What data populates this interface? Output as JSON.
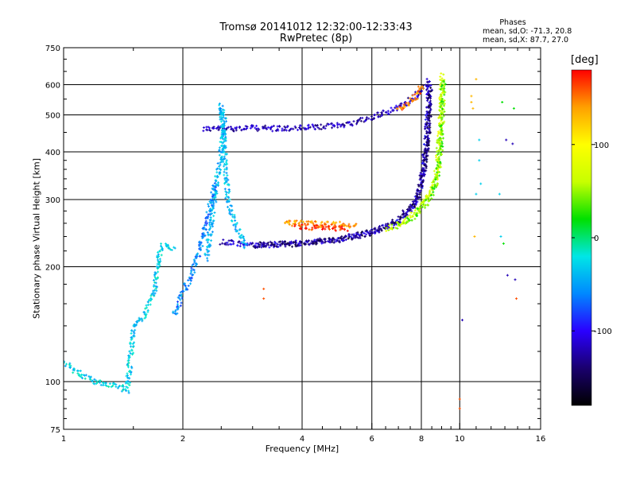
{
  "chart_data": {
    "type": "scatter",
    "title": "Tromsø 20141012 12:32:00-12:33:43",
    "subtitle": "RwPretec (8p)",
    "xlabel": "Frequency [MHz]",
    "ylabel": "Stationary phase Virtual Height [km]",
    "x_scale": "log",
    "y_scale": "log",
    "xlim": [
      1,
      16
    ],
    "ylim": [
      75,
      750
    ],
    "x_ticks": [
      1,
      2,
      4,
      6,
      8,
      10,
      16
    ],
    "y_ticks": [
      75,
      100,
      200,
      300,
      400,
      500,
      600,
      750
    ],
    "grid": true,
    "stats": {
      "heading": "Phases",
      "o_line": "mean, sd,O: -71.3, 20.8",
      "x_line": "mean, sd,X:  87.7, 27.0"
    },
    "colorbar": {
      "label": "[deg]",
      "range": [
        -180,
        180
      ],
      "ticks": [
        -100,
        0,
        100
      ],
      "colormap": "rainbow",
      "colors": [
        "#000000",
        "#1a006e",
        "#2a00ff",
        "#0088ff",
        "#00e6e6",
        "#00e000",
        "#c8ff00",
        "#ffff00",
        "#ffa000",
        "#ff0000"
      ]
    },
    "traces": [
      {
        "name": "",
        "phase": -120,
        "points": [
          [
            2.25,
            460
          ],
          [
            2.4,
            460
          ],
          [
            3.0,
            462
          ],
          [
            3.5,
            460
          ],
          [
            4.0,
            462
          ],
          [
            4.6,
            466
          ],
          [
            5.3,
            475
          ],
          [
            6.0,
            492
          ],
          [
            6.6,
            512
          ],
          [
            7.3,
            535
          ],
          [
            7.9,
            568
          ],
          [
            8.2,
            600
          ]
        ]
      },
      {
        "name": "",
        "phase": -110,
        "points": [
          [
            2.5,
            232
          ],
          [
            3.0,
            228
          ],
          [
            3.5,
            229
          ],
          [
            4.0,
            231
          ],
          [
            4.5,
            234
          ],
          [
            5.0,
            237
          ],
          [
            5.6,
            242
          ],
          [
            6.2,
            249
          ],
          [
            6.8,
            258
          ],
          [
            7.3,
            272
          ],
          [
            7.7,
            292
          ],
          [
            8.0,
            330
          ],
          [
            8.15,
            380
          ],
          [
            8.25,
            440
          ],
          [
            8.32,
            520
          ],
          [
            8.38,
            620
          ]
        ]
      },
      {
        "name": "",
        "phase": -140,
        "points": [
          [
            3.0,
            228
          ],
          [
            4.0,
            230
          ],
          [
            5.0,
            236
          ],
          [
            6.0,
            246
          ],
          [
            7.0,
            265
          ],
          [
            7.8,
            300
          ],
          [
            8.2,
            380
          ],
          [
            8.35,
            480
          ],
          [
            8.42,
            600
          ]
        ]
      },
      {
        "name": "",
        "phase": 70,
        "points": [
          [
            6.5,
            252
          ],
          [
            7.2,
            262
          ],
          [
            7.8,
            280
          ],
          [
            8.3,
            305
          ],
          [
            8.7,
            340
          ],
          [
            8.85,
            400
          ],
          [
            8.95,
            480
          ],
          [
            9.0,
            560
          ],
          [
            9.05,
            640
          ]
        ]
      },
      {
        "name": "",
        "phase": 40,
        "points": [
          [
            7.0,
            255
          ],
          [
            7.6,
            268
          ],
          [
            8.2,
            290
          ],
          [
            8.6,
            320
          ],
          [
            8.85,
            360
          ],
          [
            8.95,
            420
          ],
          [
            9.05,
            520
          ],
          [
            9.1,
            620
          ]
        ]
      },
      {
        "name": "",
        "phase": 140,
        "points": [
          [
            3.6,
            262
          ],
          [
            4.0,
            260
          ],
          [
            4.5,
            258
          ],
          [
            5.0,
            258
          ],
          [
            5.5,
            256
          ]
        ]
      },
      {
        "name": "",
        "phase": 170,
        "points": [
          [
            3.8,
            255
          ],
          [
            4.3,
            253
          ],
          [
            4.8,
            252
          ],
          [
            5.2,
            252
          ]
        ]
      },
      {
        "name": "",
        "phase": 150,
        "points": [
          [
            7.0,
            518
          ],
          [
            7.5,
            540
          ],
          [
            7.9,
            575
          ],
          [
            8.1,
            600
          ]
        ]
      },
      {
        "name": "",
        "phase": -40,
        "points": [
          [
            2.3,
            210
          ],
          [
            2.35,
            250
          ],
          [
            2.4,
            300
          ],
          [
            2.45,
            350
          ],
          [
            2.5,
            400
          ],
          [
            2.55,
            470
          ],
          [
            2.5,
            530
          ],
          [
            2.6,
            300
          ],
          [
            2.7,
            260
          ],
          [
            2.8,
            240
          ],
          [
            2.9,
            225
          ]
        ]
      },
      {
        "name": "",
        "phase": -60,
        "points": [
          [
            1.9,
            150
          ],
          [
            2.0,
            170
          ],
          [
            2.1,
            190
          ],
          [
            2.2,
            220
          ],
          [
            2.3,
            260
          ],
          [
            2.4,
            330
          ]
        ]
      },
      {
        "name": "",
        "phase": -30,
        "points": [
          [
            1.0,
            112
          ],
          [
            1.1,
            105
          ],
          [
            1.2,
            100
          ],
          [
            1.35,
            98
          ],
          [
            1.45,
            95
          ],
          [
            1.5,
            140
          ],
          [
            1.6,
            150
          ],
          [
            1.7,
            175
          ],
          [
            1.75,
            220
          ],
          [
            1.8,
            230
          ],
          [
            1.9,
            220
          ]
        ]
      }
    ],
    "outliers": [
      {
        "phase": -30,
        "points": [
          [
            11.2,
            430
          ],
          [
            11.2,
            380
          ],
          [
            11.3,
            330
          ],
          [
            11.0,
            310
          ],
          [
            12.6,
            310
          ],
          [
            12.7,
            240
          ]
        ]
      },
      {
        "phase": 130,
        "points": [
          [
            10.7,
            560
          ],
          [
            10.7,
            540
          ],
          [
            10.8,
            520
          ],
          [
            10.9,
            240
          ],
          [
            11.0,
            620
          ]
        ]
      },
      {
        "phase": -120,
        "points": [
          [
            13.1,
            430
          ],
          [
            13.6,
            420
          ],
          [
            13.2,
            190
          ],
          [
            13.8,
            185
          ],
          [
            10.15,
            145
          ]
        ]
      },
      {
        "phase": 160,
        "points": [
          [
            10.0,
            90
          ],
          [
            10.0,
            85
          ],
          [
            3.2,
            175
          ],
          [
            3.2,
            165
          ],
          [
            13.9,
            165
          ]
        ]
      },
      {
        "phase": 20,
        "points": [
          [
            12.8,
            540
          ],
          [
            13.7,
            520
          ],
          [
            12.9,
            230
          ]
        ]
      }
    ]
  }
}
